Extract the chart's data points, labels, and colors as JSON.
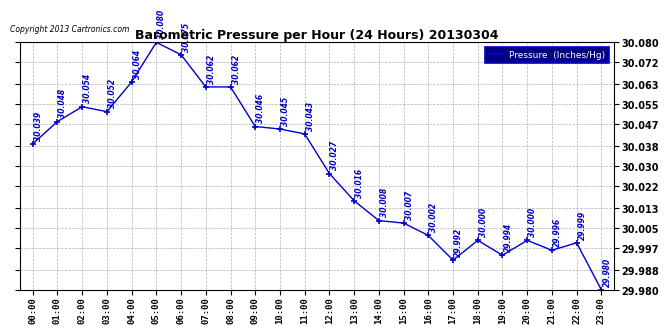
{
  "title": "Barometric Pressure per Hour (24 Hours) 20130304",
  "copyright": "Copyright 2013 Cartronics.com",
  "legend_label": "Pressure  (Inches/Hg)",
  "hours": [
    0,
    1,
    2,
    3,
    4,
    5,
    6,
    7,
    8,
    9,
    10,
    11,
    12,
    13,
    14,
    15,
    16,
    17,
    18,
    19,
    20,
    21,
    22,
    23
  ],
  "x_labels": [
    "00:00",
    "01:00",
    "02:00",
    "03:00",
    "04:00",
    "05:00",
    "06:00",
    "07:00",
    "08:00",
    "09:00",
    "10:00",
    "11:00",
    "12:00",
    "13:00",
    "14:00",
    "15:00",
    "16:00",
    "17:00",
    "18:00",
    "19:00",
    "20:00",
    "21:00",
    "22:00",
    "23:00"
  ],
  "values": [
    30.039,
    30.048,
    30.054,
    30.052,
    30.064,
    30.08,
    30.075,
    30.062,
    30.062,
    30.046,
    30.045,
    30.043,
    30.027,
    30.016,
    30.008,
    30.007,
    30.002,
    29.992,
    30.0,
    29.994,
    30.0,
    29.996,
    29.999,
    29.98
  ],
  "ylim_min": 29.98,
  "ylim_max": 30.08,
  "yticks": [
    29.98,
    29.988,
    29.997,
    30.005,
    30.013,
    30.022,
    30.03,
    30.038,
    30.047,
    30.055,
    30.063,
    30.072,
    30.08
  ],
  "line_color": "#0000cc",
  "marker_color": "#0000cc",
  "text_color": "#0000cc",
  "bg_color": "#ffffff",
  "grid_color": "#aaaaaa",
  "legend_bg": "#000080",
  "legend_text_color": "#ffffff"
}
